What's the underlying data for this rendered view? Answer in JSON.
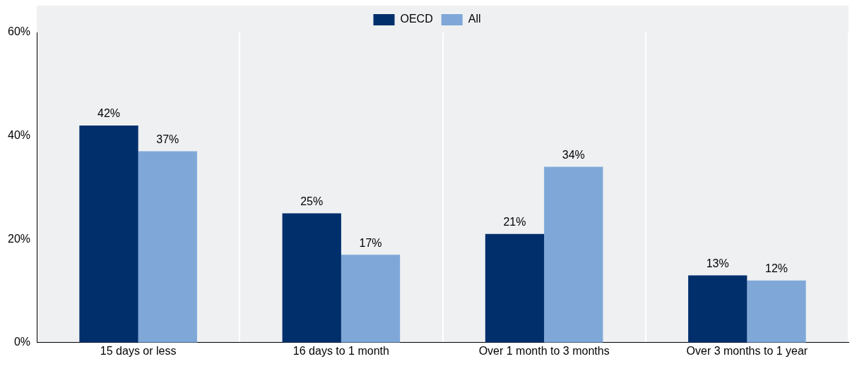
{
  "chart_data": {
    "type": "bar",
    "categories": [
      "15 days or less",
      "16 days to 1 month",
      "Over 1 month to 3 months",
      "Over 3 months to 1 year"
    ],
    "series": [
      {
        "name": "OECD",
        "color": "#002f6c",
        "values": [
          42,
          25,
          21,
          13
        ],
        "value_labels": [
          "42%",
          "25%",
          "21%",
          "13%"
        ]
      },
      {
        "name": "All",
        "color": "#7fa8d9",
        "values": [
          37,
          17,
          34,
          12
        ],
        "value_labels": [
          "37%",
          "17%",
          "34%",
          "12%"
        ]
      }
    ],
    "ylim": [
      0,
      60
    ],
    "yticks": [
      {
        "value": 0,
        "label": "0%"
      },
      {
        "value": 20,
        "label": "20%"
      },
      {
        "value": 40,
        "label": "40%"
      },
      {
        "value": 60,
        "label": "60%"
      }
    ],
    "grid": "x",
    "legend": "top"
  }
}
